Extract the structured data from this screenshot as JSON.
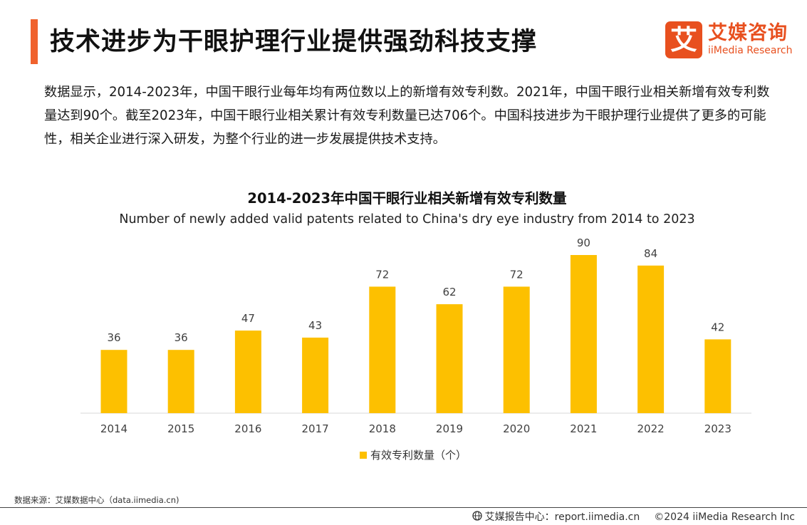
{
  "header": {
    "title": "技术进步为干眼护理行业提供强劲科技支撑",
    "logo_cn": "艾媒咨询",
    "logo_en": "iiMedia Research",
    "logo_glyph": "艾"
  },
  "intro": {
    "text": "数据显示，2014-2023年，中国干眼行业每年均有两位数以上的新增有效专利数。2021年，中国干眼行业相关新增有效专利数量达到90个。截至2023年，中国干眼行业相关累计有效专利数量已达706个。中国科技进步为干眼护理行业提供了更多的可能性，相关企业进行深入研发，为整个行业的进一步发展提供技术支持。"
  },
  "chart_data": {
    "type": "bar",
    "title": "2014-2023年中国干眼行业相关新增有效专利数量",
    "subtitle": "Number of newly added valid patents related to China's dry eye industry from 2014 to 2023",
    "categories": [
      "2014",
      "2015",
      "2016",
      "2017",
      "2018",
      "2019",
      "2020",
      "2021",
      "2022",
      "2023"
    ],
    "series": [
      {
        "name": "有效专利数量（个）",
        "values": [
          36,
          36,
          47,
          43,
          72,
          62,
          72,
          90,
          84,
          42
        ],
        "color": "#fdc000"
      }
    ],
    "ylim": [
      0,
      90
    ],
    "grid": false,
    "legend_position": "bottom"
  },
  "source": {
    "text": "数据来源：艾媒数据中心（data.iimedia.cn)"
  },
  "footer": {
    "report": "艾媒报告中心：report.iimedia.cn",
    "copyright": "©2024  iiMedia Research  Inc"
  },
  "colors": {
    "accent": "#f0622d",
    "brand": "#e8501f",
    "bar": "#fdc000"
  }
}
